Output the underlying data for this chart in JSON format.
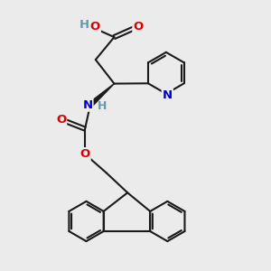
{
  "bg_color": "#ebebeb",
  "bond_color": "#1a1a1a",
  "bond_width": 1.5,
  "atom_colors": {
    "O": "#dd0000",
    "N": "#0000cc",
    "OH_color": "#6699aa",
    "NH_color": "#6699aa",
    "C": "#1a1a1a"
  },
  "font_size_atom": 9.5,
  "fig_size": [
    3.0,
    3.0
  ],
  "dpi": 100
}
